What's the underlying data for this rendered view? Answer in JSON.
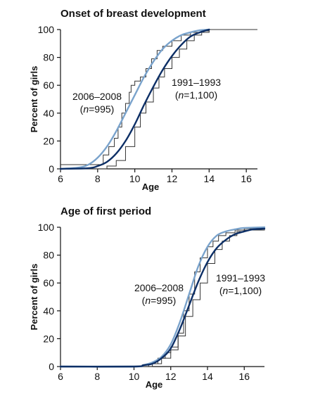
{
  "chart_data": [
    {
      "type": "line",
      "title": "Onset of breast development",
      "xlabel": "Age",
      "ylabel": "Percent of girls",
      "xlim": [
        6,
        16.6
      ],
      "ylim": [
        0,
        100
      ],
      "xticks": [
        "6",
        "8",
        "10",
        "12",
        "14",
        "16"
      ],
      "yticks": [
        "0",
        "20",
        "40",
        "60",
        "80",
        "100"
      ],
      "grid": false,
      "legend": "none",
      "series": [
        {
          "name": "2006–2008 (n=995)",
          "label_line1": "2006–2008",
          "label_n": "n",
          "label_n_value": "=995",
          "color": "#7aa3cc",
          "step_color": "#333333",
          "smooth": {
            "x": [
              6.0,
              7.0,
              7.5,
              8.0,
              8.5,
              9.0,
              9.5,
              10.0,
              10.5,
              11.0,
              11.5,
              12.0,
              12.5,
              13.0,
              13.5,
              14.0
            ],
            "y": [
              0,
              1,
              3,
              8,
              16,
              27,
              40,
              53,
              66,
              77,
              86,
              92,
              96,
              98,
              99.5,
              100
            ]
          },
          "step": {
            "x": [
              6.0,
              8.0,
              8.3,
              8.6,
              8.9,
              9.1,
              9.3,
              9.5,
              9.7,
              9.8,
              10.0,
              10.3,
              10.6,
              10.9,
              11.2,
              11.5,
              12.0,
              12.5,
              13.0,
              14.0,
              16.6
            ],
            "y": [
              3,
              3,
              10,
              16,
              22,
              30,
              40,
              47,
              55,
              60,
              63,
              66,
              72,
              79,
              85,
              88,
              92,
              96,
              98,
              100,
              100
            ]
          }
        },
        {
          "name": "1991–1993 (n=1,100)",
          "label_line1": "1991–1993",
          "label_n": "n",
          "label_n_value": "=1,100",
          "color": "#0d2f66",
          "step_color": "#333333",
          "smooth": {
            "x": [
              6.0,
              7.5,
              8.0,
              8.5,
              9.0,
              9.5,
              10.0,
              10.5,
              11.0,
              11.5,
              12.0,
              12.5,
              13.0,
              13.5,
              14.0
            ],
            "y": [
              0,
              0.5,
              2,
              5,
              11,
              20,
              32,
              46,
              59,
              71,
              81,
              89,
              95,
              98,
              100
            ]
          },
          "step": {
            "x": [
              6.0,
              8.0,
              8.5,
              9.0,
              9.5,
              10.0,
              10.3,
              10.6,
              11.0,
              11.3,
              11.6,
              12.0,
              12.4,
              12.8,
              13.2,
              13.6,
              14.0,
              16.6
            ],
            "y": [
              0,
              0,
              2,
              6,
              16,
              30,
              40,
              48,
              58,
              66,
              72,
              80,
              86,
              92,
              96,
              99,
              100,
              100
            ]
          }
        }
      ]
    },
    {
      "type": "line",
      "title": "Age of first period",
      "xlabel": "Age",
      "ylabel": "Percent of girls",
      "xlim": [
        6,
        17.1
      ],
      "ylim": [
        0,
        100
      ],
      "xticks": [
        "6",
        "8",
        "10",
        "12",
        "14",
        "16"
      ],
      "yticks": [
        "0",
        "20",
        "40",
        "60",
        "80",
        "100"
      ],
      "grid": false,
      "legend": "none",
      "series": [
        {
          "name": "2006–2008 (n=995)",
          "label_line1": "2006–2008",
          "label_n": "n",
          "label_n_value": "=995",
          "color": "#7aa3cc",
          "step_color": "#333333",
          "smooth": {
            "x": [
              6.0,
              10.0,
              10.5,
              11.0,
              11.5,
              12.0,
              12.5,
              13.0,
              13.5,
              14.0,
              14.5,
              15.0,
              15.5,
              16.0,
              17.1
            ],
            "y": [
              0,
              0,
              1,
              3,
              7,
              16,
              32,
              52,
              72,
              86,
              94,
              97,
              98.5,
              99.5,
              100
            ]
          },
          "step": {
            "x": [
              6.0,
              10.2,
              10.8,
              11.3,
              11.7,
              12.0,
              12.4,
              12.7,
              13.0,
              13.3,
              13.6,
              14.0,
              14.3,
              14.6,
              15.0,
              15.5,
              16.0,
              17.1
            ],
            "y": [
              0,
              0,
              2,
              6,
              10,
              14,
              24,
              40,
              52,
              68,
              78,
              86,
              90,
              94,
              96,
              98,
              99,
              100
            ]
          }
        },
        {
          "name": "1991–1993 (n=1,100)",
          "label_line1": "1991–1993",
          "label_n": "n",
          "label_n_value": "=1,100",
          "color": "#0d2f66",
          "step_color": "#333333",
          "smooth": {
            "x": [
              6.0,
              10.0,
              10.5,
              11.0,
              11.5,
              12.0,
              12.5,
              13.0,
              13.5,
              14.0,
              14.5,
              15.0,
              15.5,
              16.0,
              16.5,
              17.1
            ],
            "y": [
              0,
              0,
              1,
              2,
              6,
              13,
              27,
              44,
              61,
              75,
              85,
              91,
              95,
              97,
              98.5,
              99
            ]
          },
          "step": {
            "x": [
              6.0,
              10.5,
              11.0,
              11.5,
              12.0,
              12.4,
              12.8,
              13.2,
              13.6,
              14.0,
              14.4,
              14.8,
              15.2,
              15.6,
              16.0,
              17.1
            ],
            "y": [
              0,
              0,
              2,
              6,
              12,
              22,
              36,
              48,
              60,
              74,
              84,
              90,
              94,
              97,
              98,
              99
            ]
          }
        }
      ]
    }
  ]
}
